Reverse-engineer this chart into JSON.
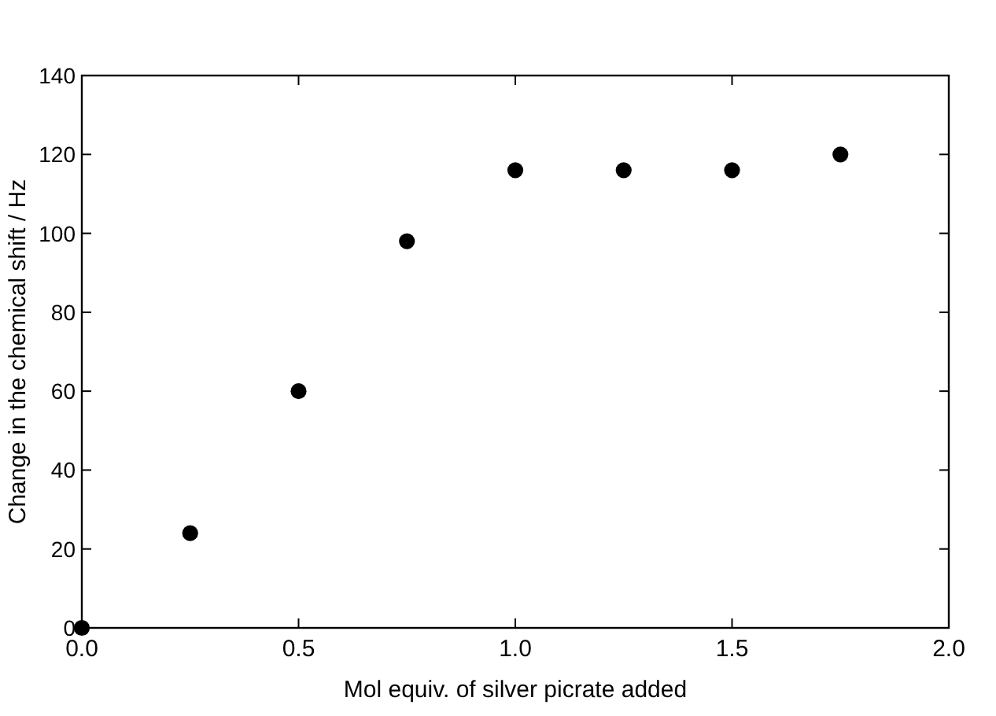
{
  "chart_data": {
    "type": "scatter",
    "xlabel": "Mol equiv. of silver picrate added",
    "ylabel": "Change in the chemical shift / Hz",
    "x": [
      0,
      0.25,
      0.5,
      0.75,
      1.0,
      1.25,
      1.5,
      1.75
    ],
    "series": [
      {
        "color": "#000000",
        "values": [
          0,
          24,
          60,
          98,
          116,
          116,
          116,
          120
        ]
      }
    ],
    "xlim": [
      0,
      2
    ],
    "xticks": [
      {
        "value": 0,
        "label": "0.0"
      },
      {
        "value": 0.5,
        "label": "0.5"
      },
      {
        "value": 1,
        "label": "1.0"
      },
      {
        "value": 1.5,
        "label": "1.5"
      },
      {
        "value": 2,
        "label": "2.0"
      }
    ],
    "ylim": [
      0,
      140
    ],
    "yticks": [
      0,
      20,
      40,
      60,
      80,
      100,
      120,
      140
    ],
    "grid": false,
    "marker": "circle"
  }
}
